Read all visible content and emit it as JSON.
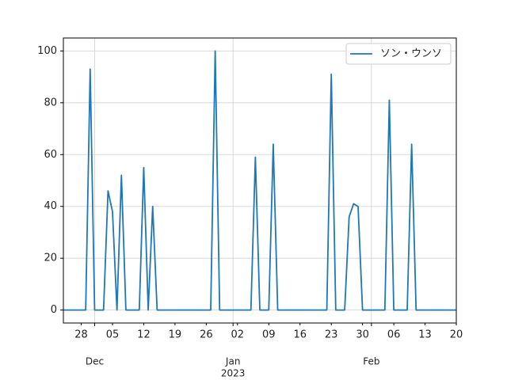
{
  "chart_data": {
    "type": "line",
    "x": [
      "2022-11-24",
      "2022-11-25",
      "2022-11-26",
      "2022-11-27",
      "2022-11-28",
      "2022-11-29",
      "2022-11-30",
      "2022-12-01",
      "2022-12-02",
      "2022-12-03",
      "2022-12-04",
      "2022-12-05",
      "2022-12-06",
      "2022-12-07",
      "2022-12-08",
      "2022-12-09",
      "2022-12-10",
      "2022-12-11",
      "2022-12-12",
      "2022-12-13",
      "2022-12-14",
      "2022-12-15",
      "2022-12-16",
      "2022-12-17",
      "2022-12-18",
      "2022-12-19",
      "2022-12-20",
      "2022-12-21",
      "2022-12-22",
      "2022-12-23",
      "2022-12-24",
      "2022-12-25",
      "2022-12-26",
      "2022-12-27",
      "2022-12-28",
      "2022-12-29",
      "2022-12-30",
      "2022-12-31",
      "2023-01-01",
      "2023-01-02",
      "2023-01-03",
      "2023-01-04",
      "2023-01-05",
      "2023-01-06",
      "2023-01-07",
      "2023-01-08",
      "2023-01-09",
      "2023-01-10",
      "2023-01-11",
      "2023-01-12",
      "2023-01-13",
      "2023-01-14",
      "2023-01-15",
      "2023-01-16",
      "2023-01-17",
      "2023-01-18",
      "2023-01-19",
      "2023-01-20",
      "2023-01-21",
      "2023-01-22",
      "2023-01-23",
      "2023-01-24",
      "2023-01-25",
      "2023-01-26",
      "2023-01-27",
      "2023-01-28",
      "2023-01-29",
      "2023-01-30",
      "2023-01-31",
      "2023-02-01",
      "2023-02-02",
      "2023-02-03",
      "2023-02-04",
      "2023-02-05",
      "2023-02-06",
      "2023-02-07",
      "2023-02-08",
      "2023-02-09",
      "2023-02-10",
      "2023-02-11",
      "2023-02-12",
      "2023-02-13",
      "2023-02-14",
      "2023-02-15",
      "2023-02-16",
      "2023-02-17",
      "2023-02-18",
      "2023-02-19",
      "2023-02-20"
    ],
    "series": [
      {
        "name": "ソン・ウンソ",
        "color": "#1f77b4",
        "values": [
          0,
          0,
          0,
          0,
          0,
          0,
          93,
          0,
          0,
          0,
          46,
          38,
          0,
          52,
          0,
          0,
          0,
          0,
          55,
          0,
          40,
          0,
          0,
          0,
          0,
          0,
          0,
          0,
          0,
          0,
          0,
          0,
          0,
          0,
          100,
          0,
          0,
          0,
          0,
          0,
          0,
          0,
          0,
          59,
          0,
          0,
          0,
          64,
          0,
          0,
          0,
          0,
          0,
          0,
          0,
          0,
          0,
          0,
          0,
          0,
          91,
          0,
          0,
          0,
          36,
          41,
          40,
          0,
          0,
          0,
          0,
          0,
          0,
          81,
          0,
          0,
          0,
          0,
          64,
          0,
          0,
          0,
          0,
          0,
          0,
          0,
          0,
          0,
          0
        ]
      }
    ],
    "xlim": [
      "2022-11-24",
      "2023-02-20"
    ],
    "xticks": [
      {
        "value": "2022-11-28",
        "label": "28"
      },
      {
        "value": "2022-12-05",
        "label": "05"
      },
      {
        "value": "2022-12-12",
        "label": "12"
      },
      {
        "value": "2022-12-19",
        "label": "19"
      },
      {
        "value": "2022-12-26",
        "label": "26"
      },
      {
        "value": "2023-01-02",
        "label": "02"
      },
      {
        "value": "2023-01-09",
        "label": "09"
      },
      {
        "value": "2023-01-16",
        "label": "16"
      },
      {
        "value": "2023-01-23",
        "label": "23"
      },
      {
        "value": "2023-01-30",
        "label": "30"
      },
      {
        "value": "2023-02-06",
        "label": "06"
      },
      {
        "value": "2023-02-13",
        "label": "13"
      },
      {
        "value": "2023-02-20",
        "label": "20"
      }
    ],
    "xticks_major": [
      {
        "value": "2022-12-01",
        "label": "Dec"
      },
      {
        "value": "2023-01-01",
        "label": "Jan",
        "sublabel": "2023"
      },
      {
        "value": "2023-02-01",
        "label": "Feb"
      }
    ],
    "ylim": [
      -5,
      105
    ],
    "yticks": [
      0,
      20,
      40,
      60,
      80,
      100
    ],
    "grid": true,
    "legend": "upper right"
  }
}
